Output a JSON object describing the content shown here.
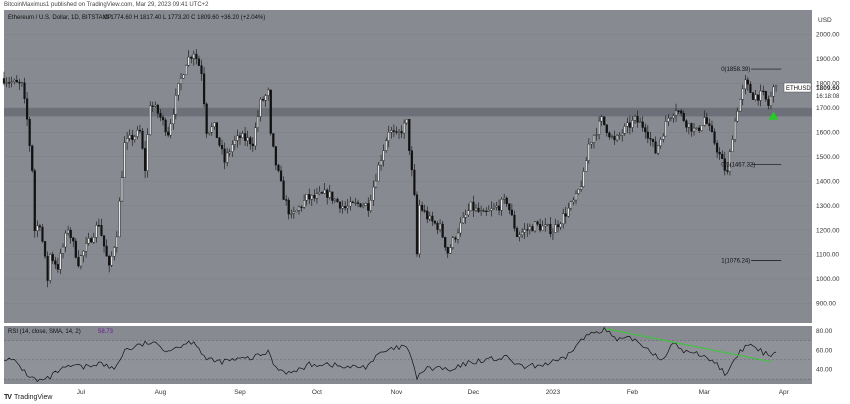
{
  "header": {
    "attribution": "BitcoinMaximus1 published on TradingView.com, Mar 29, 2023 09:41 UTC+2"
  },
  "chart_data": {
    "type": "candlestick",
    "title": "Ethereum / U.S. Dollar, 1D, BITSTAMP",
    "ohlc_label": "O 1774.60  H 1817.40  L 1773.20  C 1809.60  +36.20 (+2.04%)",
    "price_axis_label": "USD",
    "y_ticks": [
      "2000.00",
      "1900.00",
      "1800.00",
      "1700.00",
      "1600.00",
      "1500.00",
      "1400.00",
      "1300.00",
      "1200.00",
      "1100.00",
      "1000.00",
      "900.00"
    ],
    "ylim": [
      820,
      2100
    ],
    "x_ticks": [
      "Jul",
      "Aug",
      "Sep",
      "Oct",
      "Nov",
      "Dec",
      "2023",
      "Feb",
      "Mar",
      "Apr"
    ],
    "x_tick_dates": [
      "2022-07-01",
      "2022-08-01",
      "2022-09-01",
      "2022-10-01",
      "2022-11-01",
      "2022-12-01",
      "2023-01-01",
      "2023-02-01",
      "2023-03-01",
      "2023-04-01"
    ],
    "date_range": [
      "2022-06-01",
      "2023-04-12"
    ],
    "last_date": "2023-03-29",
    "series_name": "ETHUSD",
    "last_price": "1809.60",
    "countdown": "16:18:08",
    "resistance_zone": [
      1665,
      1700
    ],
    "closes": [
      [
        "2022-06-01",
        1820
      ],
      [
        "2022-06-05",
        1800
      ],
      [
        "2022-06-08",
        1790
      ],
      [
        "2022-06-10",
        1650
      ],
      [
        "2022-06-12",
        1450
      ],
      [
        "2022-06-13",
        1200
      ],
      [
        "2022-06-15",
        1230
      ],
      [
        "2022-06-18",
        1000
      ],
      [
        "2022-06-19",
        1100
      ],
      [
        "2022-06-22",
        1050
      ],
      [
        "2022-06-26",
        1210
      ],
      [
        "2022-06-30",
        1070
      ],
      [
        "2022-07-04",
        1150
      ],
      [
        "2022-07-08",
        1230
      ],
      [
        "2022-07-12",
        1040
      ],
      [
        "2022-07-15",
        1190
      ],
      [
        "2022-07-18",
        1550
      ],
      [
        "2022-07-21",
        1580
      ],
      [
        "2022-07-24",
        1600
      ],
      [
        "2022-07-26",
        1450
      ],
      [
        "2022-07-28",
        1720
      ],
      [
        "2022-07-31",
        1680
      ],
      [
        "2022-08-04",
        1600
      ],
      [
        "2022-08-08",
        1780
      ],
      [
        "2022-08-11",
        1890
      ],
      [
        "2022-08-14",
        1930
      ],
      [
        "2022-08-17",
        1850
      ],
      [
        "2022-08-19",
        1610
      ],
      [
        "2022-08-22",
        1620
      ],
      [
        "2022-08-26",
        1480
      ],
      [
        "2022-08-29",
        1550
      ],
      [
        "2022-09-01",
        1580
      ],
      [
        "2022-09-06",
        1560
      ],
      [
        "2022-09-09",
        1720
      ],
      [
        "2022-09-12",
        1760
      ],
      [
        "2022-09-13",
        1580
      ],
      [
        "2022-09-15",
        1470
      ],
      [
        "2022-09-18",
        1340
      ],
      [
        "2022-09-21",
        1250
      ],
      [
        "2022-09-27",
        1330
      ],
      [
        "2022-09-30",
        1330
      ],
      [
        "2022-10-05",
        1350
      ],
      [
        "2022-10-12",
        1290
      ],
      [
        "2022-10-18",
        1310
      ],
      [
        "2022-10-21",
        1300
      ],
      [
        "2022-10-25",
        1460
      ],
      [
        "2022-10-29",
        1610
      ],
      [
        "2022-11-01",
        1580
      ],
      [
        "2022-11-05",
        1640
      ],
      [
        "2022-11-08",
        1330
      ],
      [
        "2022-11-09",
        1100
      ],
      [
        "2022-11-10",
        1300
      ],
      [
        "2022-11-14",
        1240
      ],
      [
        "2022-11-18",
        1210
      ],
      [
        "2022-11-21",
        1110
      ],
      [
        "2022-11-25",
        1200
      ],
      [
        "2022-11-30",
        1295
      ],
      [
        "2022-12-05",
        1260
      ],
      [
        "2022-12-14",
        1320
      ],
      [
        "2022-12-18",
        1180
      ],
      [
        "2022-12-25",
        1220
      ],
      [
        "2023-01-01",
        1200
      ],
      [
        "2023-01-06",
        1270
      ],
      [
        "2023-01-10",
        1330
      ],
      [
        "2023-01-13",
        1420
      ],
      [
        "2023-01-15",
        1550
      ],
      [
        "2023-01-20",
        1650
      ],
      [
        "2023-01-25",
        1560
      ],
      [
        "2023-01-28",
        1600
      ],
      [
        "2023-02-02",
        1650
      ],
      [
        "2023-02-06",
        1620
      ],
      [
        "2023-02-10",
        1520
      ],
      [
        "2023-02-15",
        1660
      ],
      [
        "2023-02-18",
        1700
      ],
      [
        "2023-02-22",
        1640
      ],
      [
        "2023-02-26",
        1600
      ],
      [
        "2023-03-01",
        1660
      ],
      [
        "2023-03-05",
        1560
      ],
      [
        "2023-03-09",
        1450
      ],
      [
        "2023-03-10",
        1430
      ],
      [
        "2023-03-12",
        1590
      ],
      [
        "2023-03-14",
        1700
      ],
      [
        "2023-03-17",
        1800
      ],
      [
        "2023-03-20",
        1750
      ],
      [
        "2023-03-24",
        1750
      ],
      [
        "2023-03-26",
        1710
      ],
      [
        "2023-03-29",
        1810
      ]
    ],
    "fib_levels": [
      {
        "label": "0(1858.39)",
        "value": 1858.39
      },
      {
        "label": "0.5(1467.32)",
        "value": 1467.32
      },
      {
        "label": "1(1076.24)",
        "value": 1076.24
      }
    ],
    "signal_marker": {
      "date": "2023-03-28",
      "value": 1668,
      "shape": "triangle-up",
      "color": "#22cc22"
    },
    "rsi": {
      "label": "RSI (14, close, SMA, 14, 2)",
      "value_text": "58.73",
      "ticks": [
        "80.00",
        "60.00",
        "40.00"
      ],
      "ylim": [
        25,
        85
      ],
      "band": [
        30,
        70
      ],
      "values": [
        [
          "2022-06-01",
          52
        ],
        [
          "2022-06-06",
          47
        ],
        [
          "2022-06-10",
          35
        ],
        [
          "2022-06-14",
          28
        ],
        [
          "2022-06-18",
          30
        ],
        [
          "2022-06-22",
          38
        ],
        [
          "2022-06-28",
          44
        ],
        [
          "2022-07-02",
          42
        ],
        [
          "2022-07-08",
          47
        ],
        [
          "2022-07-14",
          40
        ],
        [
          "2022-07-18",
          60
        ],
        [
          "2022-07-24",
          65
        ],
        [
          "2022-07-28",
          68
        ],
        [
          "2022-08-04",
          60
        ],
        [
          "2022-08-10",
          66
        ],
        [
          "2022-08-14",
          70
        ],
        [
          "2022-08-19",
          50
        ],
        [
          "2022-08-24",
          48
        ],
        [
          "2022-08-30",
          50
        ],
        [
          "2022-09-06",
          52
        ],
        [
          "2022-09-12",
          58
        ],
        [
          "2022-09-15",
          42
        ],
        [
          "2022-09-21",
          36
        ],
        [
          "2022-09-28",
          45
        ],
        [
          "2022-10-05",
          46
        ],
        [
          "2022-10-12",
          42
        ],
        [
          "2022-10-20",
          43
        ],
        [
          "2022-10-26",
          57
        ],
        [
          "2022-11-01",
          62
        ],
        [
          "2022-11-05",
          64
        ],
        [
          "2022-11-09",
          32
        ],
        [
          "2022-11-12",
          40
        ],
        [
          "2022-11-18",
          42
        ],
        [
          "2022-11-22",
          38
        ],
        [
          "2022-11-28",
          46
        ],
        [
          "2022-12-05",
          50
        ],
        [
          "2022-12-14",
          52
        ],
        [
          "2022-12-20",
          42
        ],
        [
          "2022-12-28",
          45
        ],
        [
          "2023-01-05",
          50
        ],
        [
          "2023-01-12",
          70
        ],
        [
          "2023-01-16",
          78
        ],
        [
          "2023-01-21",
          82
        ],
        [
          "2023-01-26",
          70
        ],
        [
          "2023-02-01",
          72
        ],
        [
          "2023-02-08",
          60
        ],
        [
          "2023-02-12",
          50
        ],
        [
          "2023-02-17",
          66
        ],
        [
          "2023-02-22",
          58
        ],
        [
          "2023-03-01",
          55
        ],
        [
          "2023-03-06",
          45
        ],
        [
          "2023-03-10",
          34
        ],
        [
          "2023-03-14",
          55
        ],
        [
          "2023-03-18",
          66
        ],
        [
          "2023-03-22",
          60
        ],
        [
          "2023-03-26",
          55
        ],
        [
          "2023-03-29",
          59
        ]
      ],
      "divergence_line": [
        [
          "2023-01-22",
          82
        ],
        [
          "2023-03-27",
          48
        ]
      ],
      "divergence_color": "#44c044"
    }
  },
  "footer": {
    "logo": "TV",
    "brand": "TradingView"
  },
  "colors": {
    "plot_bg": "#878a91",
    "candle": "#111111",
    "line": "#222222"
  }
}
